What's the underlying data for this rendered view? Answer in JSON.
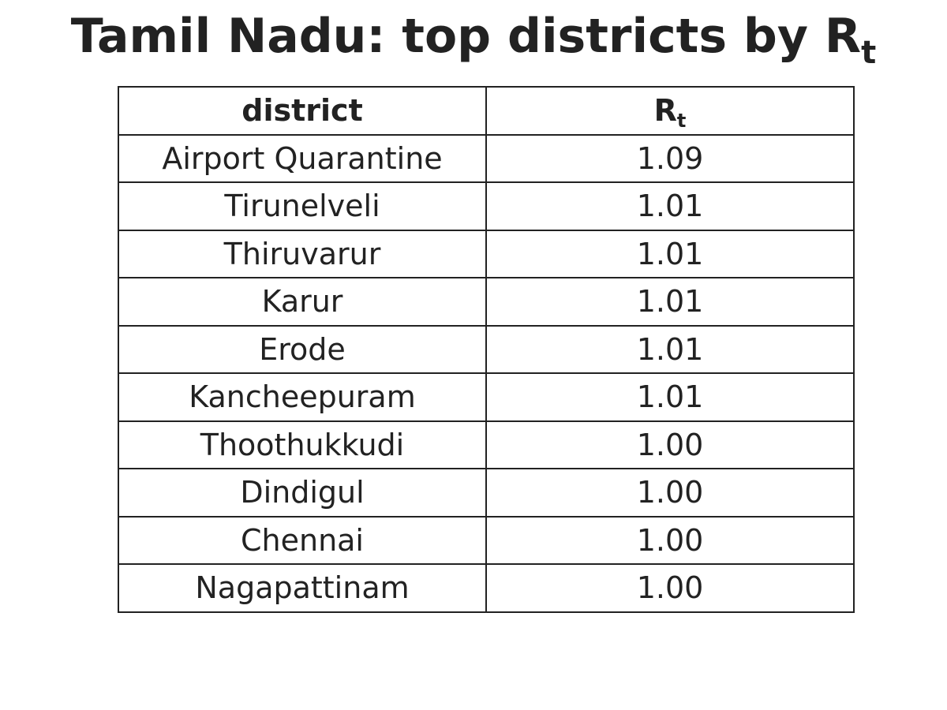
{
  "title": {
    "main": "Tamil Nadu: top districts by R",
    "subscript": "t"
  },
  "chart_data": {
    "type": "table",
    "columns": [
      {
        "label": "district",
        "subscript": ""
      },
      {
        "label": "R",
        "subscript": "t"
      }
    ],
    "rows": [
      {
        "district": "Airport Quarantine",
        "rt": "1.09"
      },
      {
        "district": "Tirunelveli",
        "rt": "1.01"
      },
      {
        "district": "Thiruvarur",
        "rt": "1.01"
      },
      {
        "district": "Karur",
        "rt": "1.01"
      },
      {
        "district": "Erode",
        "rt": "1.01"
      },
      {
        "district": "Kancheepuram",
        "rt": "1.01"
      },
      {
        "district": "Thoothukkudi",
        "rt": "1.00"
      },
      {
        "district": "Dindigul",
        "rt": "1.00"
      },
      {
        "district": "Chennai",
        "rt": "1.00"
      },
      {
        "district": "Nagapattinam",
        "rt": "1.00"
      }
    ]
  },
  "colors": {
    "text": "#222222",
    "border": "#222222",
    "background": "#ffffff"
  }
}
